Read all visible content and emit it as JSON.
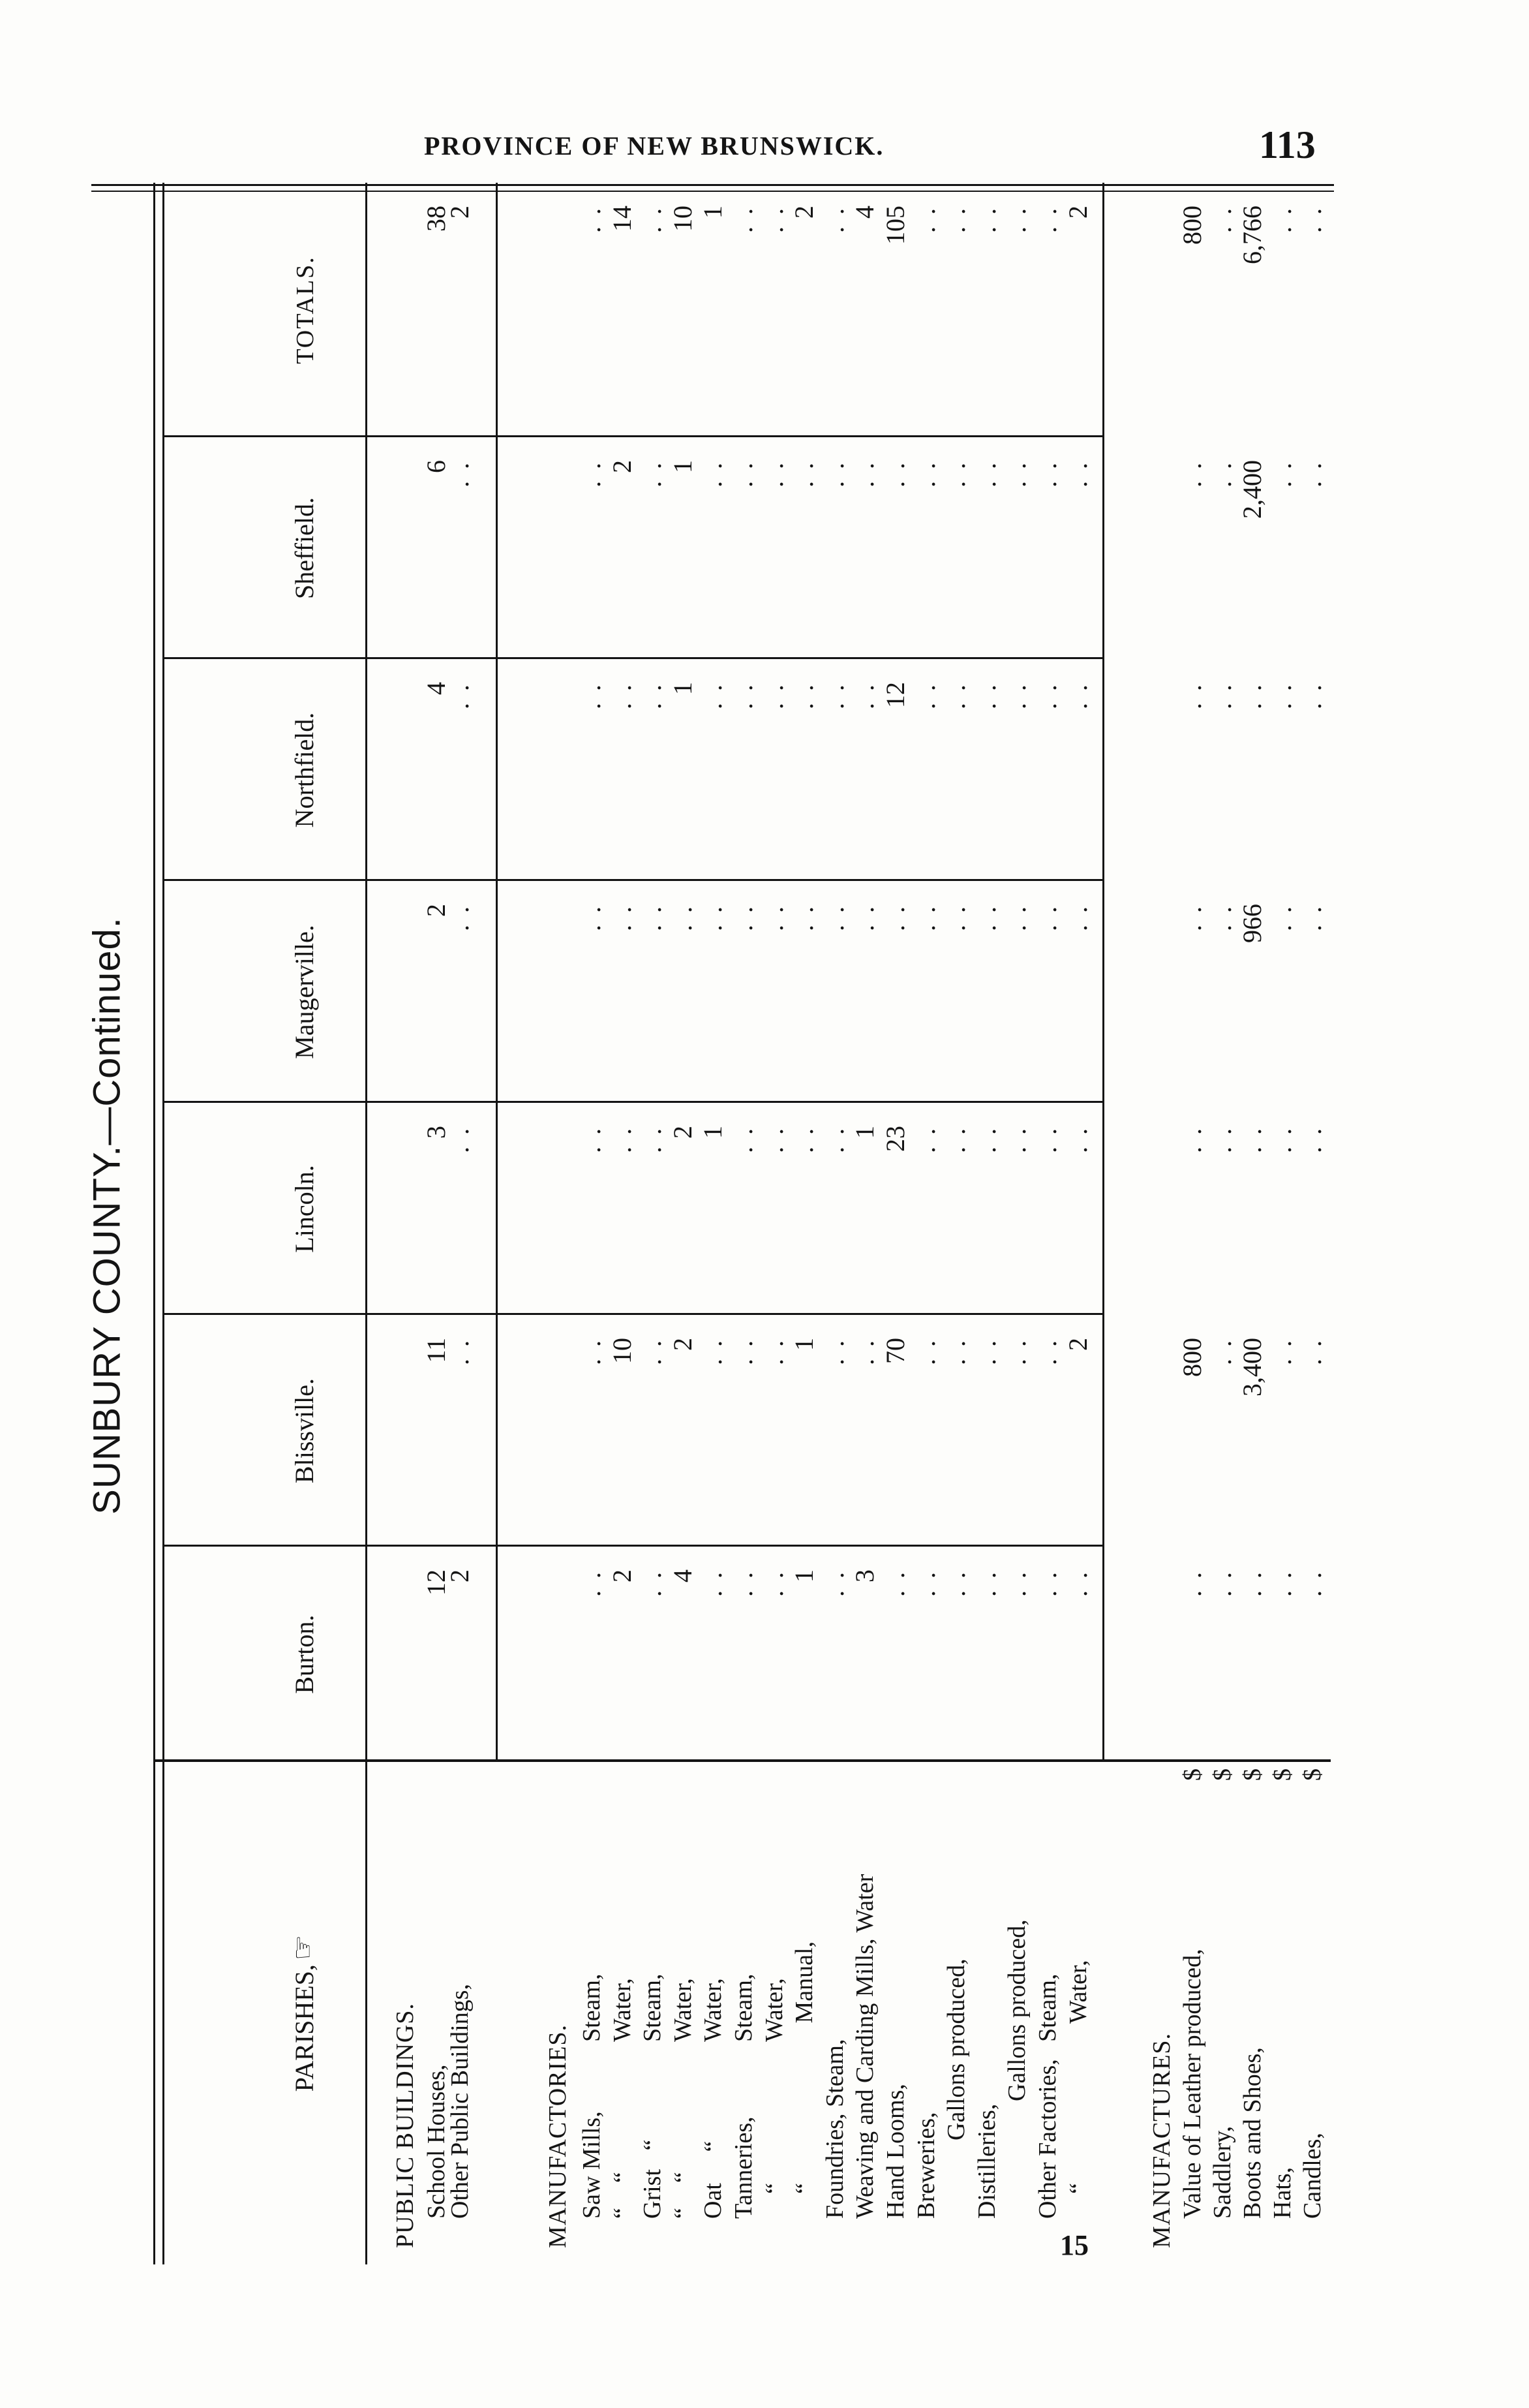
{
  "header": {
    "running_head": "PROVINCE OF NEW BRUNSWICK.",
    "page_number": "113"
  },
  "title": "SUNBURY COUNTY.—Continued.",
  "signature_mark": "15",
  "dots_placeholder": ". .",
  "table": {
    "stub_header": "PARISHES,",
    "stub_icon": "pointing-hand-icon",
    "parishes": [
      "Burton.",
      "Blissville.",
      "Lincoln.",
      "Maugerville.",
      "Northfield.",
      "Sheffield.",
      "TOTALS."
    ],
    "sections": [
      {
        "heading": "PUBLIC BUILDINGS.",
        "rows": [
          {
            "label": "School Houses,",
            "values": [
              "12",
              "11",
              "3",
              "2",
              "4",
              "6",
              "38"
            ]
          },
          {
            "label": "Other Public Buildings,",
            "values": [
              "2",
              null,
              null,
              null,
              null,
              null,
              "2"
            ]
          }
        ]
      },
      {
        "heading": "MANUFACTORIES.",
        "rows": [
          {
            "label": "Saw Mills,",
            "suffix": "Steam,",
            "values": [
              null,
              null,
              null,
              null,
              null,
              null,
              null
            ]
          },
          {
            "label": "“    “",
            "suffix": "Water,",
            "values": [
              "2",
              "10",
              null,
              null,
              null,
              "2",
              "14"
            ]
          },
          {
            "label": "Grist   “",
            "suffix": "Steam,",
            "values": [
              null,
              null,
              null,
              null,
              null,
              null,
              null
            ]
          },
          {
            "label": "“    “",
            "suffix": "Water,",
            "values": [
              "4",
              "2",
              "2",
              null,
              "1",
              "1",
              "10"
            ]
          },
          {
            "label": "Oat     “",
            "suffix": "Water,",
            "values": [
              null,
              null,
              "1",
              null,
              null,
              null,
              "1"
            ]
          },
          {
            "label": "Tanneries,",
            "suffix": "Steam,",
            "values": [
              null,
              null,
              null,
              null,
              null,
              null,
              null
            ]
          },
          {
            "label": "    “",
            "suffix": "Water,",
            "values": [
              null,
              null,
              null,
              null,
              null,
              null,
              null
            ]
          },
          {
            "label": "    “",
            "suffix": "   Manual,",
            "values": [
              "1",
              "1",
              null,
              null,
              null,
              null,
              "2"
            ]
          },
          {
            "label": "Foundries, Steam,",
            "values": [
              null,
              null,
              null,
              null,
              null,
              null,
              null
            ]
          },
          {
            "label": "Weaving and Carding Mills, Water",
            "values": [
              "3",
              null,
              "1",
              null,
              null,
              null,
              "4"
            ]
          },
          {
            "label": "Hand Looms,",
            "values": [
              null,
              "70",
              "23",
              null,
              "12",
              null,
              "105"
            ]
          },
          {
            "label": "Breweries,",
            "values": [
              null,
              null,
              null,
              null,
              null,
              null,
              null
            ]
          },
          {
            "label": "Gallons produced,",
            "indent": 1,
            "values": [
              null,
              null,
              null,
              null,
              null,
              null,
              null
            ]
          },
          {
            "label": "Distilleries,",
            "values": [
              null,
              null,
              null,
              null,
              null,
              null,
              null
            ]
          },
          {
            "label": "Gallons produced,",
            "indent": 2,
            "values": [
              null,
              null,
              null,
              null,
              null,
              null,
              null
            ]
          },
          {
            "label": "Other Factories,",
            "suffix": "Steam,",
            "values": [
              null,
              null,
              null,
              null,
              null,
              null,
              null
            ]
          },
          {
            "label": "    “",
            "suffix": "   Water,",
            "values": [
              null,
              "2",
              null,
              null,
              null,
              null,
              "2"
            ]
          }
        ]
      },
      {
        "heading": "MANUFACTURES.",
        "rows": [
          {
            "label": "Value of Leather produced,",
            "unit": "$",
            "values": [
              null,
              "800",
              null,
              null,
              null,
              null,
              "800"
            ]
          },
          {
            "label": "Saddlery,",
            "unit": "$",
            "values": [
              null,
              null,
              null,
              null,
              null,
              null,
              null
            ]
          },
          {
            "label": "Boots and Shoes,",
            "unit": "$",
            "values": [
              null,
              "3,400",
              null,
              "966",
              null,
              "2,400",
              "6,766"
            ]
          },
          {
            "label": "Hats,",
            "unit": "$",
            "values": [
              null,
              null,
              null,
              null,
              null,
              null,
              null
            ]
          },
          {
            "label": "Candles,",
            "unit": "$",
            "values": [
              null,
              null,
              null,
              null,
              null,
              null,
              null
            ]
          }
        ]
      }
    ]
  }
}
